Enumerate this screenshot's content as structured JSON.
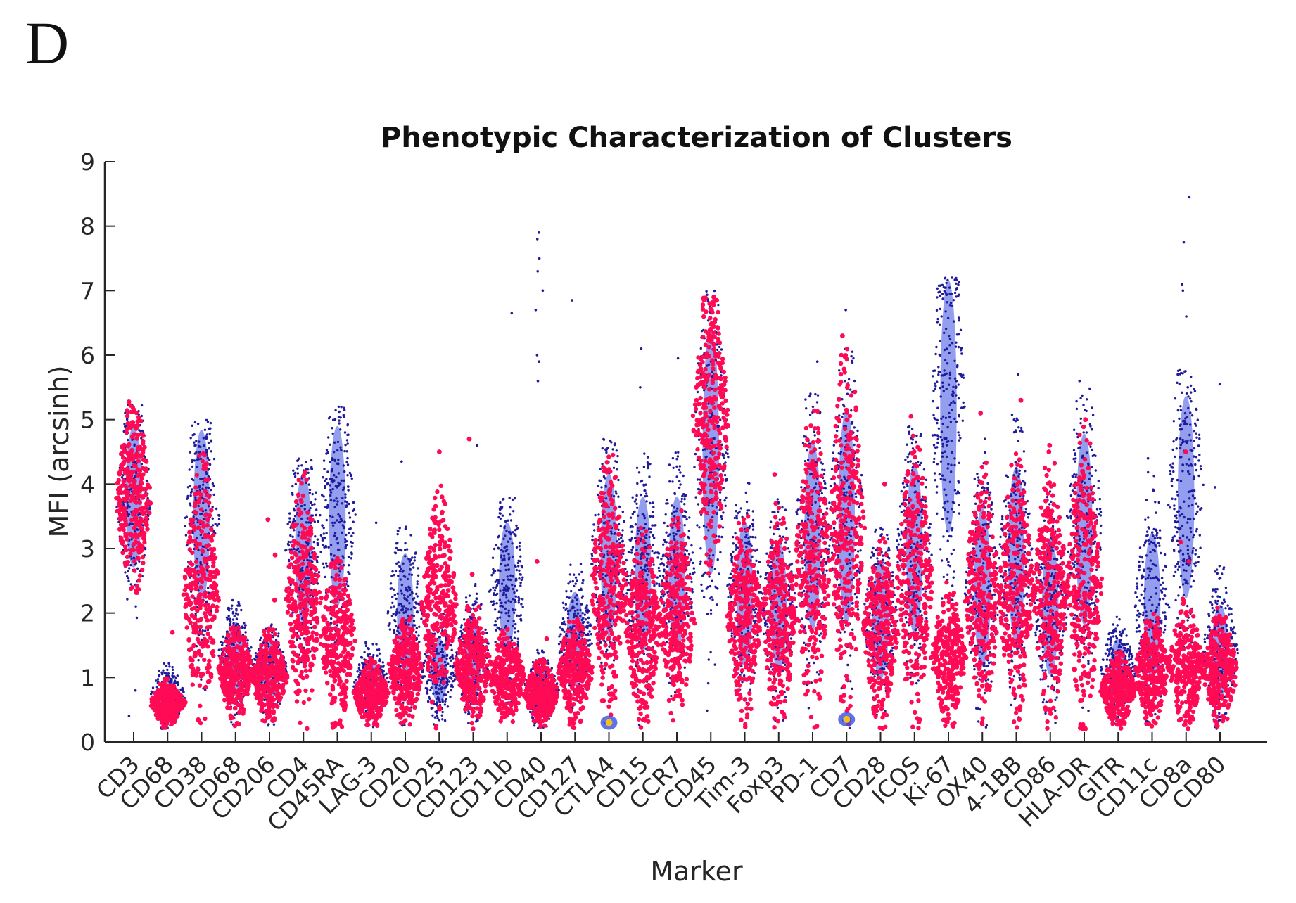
{
  "figure": {
    "panel_label": "D"
  },
  "colors": {
    "background": "#ffffff",
    "axis": "#262626",
    "cluster_a": "#1f1b9a",
    "cluster_a_density": "#3a4fe0",
    "cluster_b": "#ff0a54",
    "hotspot": "#f0c020"
  },
  "chart_data": {
    "type": "scatter",
    "title": "Phenotypic Characterization of Clusters",
    "xlabel": "Marker",
    "ylabel": "MFI (arcsinh)",
    "ylim": [
      0,
      9
    ],
    "yticks": [
      0,
      1,
      2,
      3,
      4,
      5,
      6,
      7,
      8,
      9
    ],
    "grid": false,
    "legend": "none",
    "categories": [
      "CD3",
      "CD68",
      "CD38",
      "CD68",
      "CD206",
      "CD4",
      "CD45RA",
      "LAG-3",
      "CD20",
      "CD25",
      "CD123",
      "CD11b",
      "CD40",
      "CD127",
      "CTLA4",
      "CD15",
      "CCR7",
      "CD45",
      "Tim-3",
      "Foxp3",
      "PD-1",
      "CD7",
      "CD28",
      "ICOS",
      "Ki-67",
      "OX40",
      "4-1BB",
      "CD86",
      "HLA-DR",
      "GITR",
      "CD11c",
      "CD8a",
      "CD80"
    ],
    "series": [
      {
        "color": "#1f1b9a",
        "low": [
          1.5,
          0.2,
          0.2,
          0.2,
          0.2,
          0.2,
          0.2,
          0.2,
          0.2,
          0.2,
          0.2,
          0.2,
          0.2,
          0.2,
          0.2,
          0.2,
          0.2,
          0.2,
          0.2,
          0.2,
          0.2,
          0.2,
          0.2,
          0.2,
          0.2,
          0.2,
          0.2,
          0.2,
          0.2,
          0.2,
          0.2,
          0.2,
          0.2
        ],
        "high": [
          5.4,
          1.3,
          5.0,
          2.2,
          2.0,
          4.4,
          5.2,
          1.6,
          3.5,
          2.0,
          2.5,
          3.8,
          1.5,
          2.8,
          4.7,
          4.5,
          4.5,
          7.0,
          4.2,
          3.8,
          5.4,
          6.1,
          3.5,
          4.9,
          7.2,
          4.6,
          5.1,
          4.0,
          5.5,
          2.0,
          4.3,
          5.8,
          2.8
        ],
        "median": [
          3.8,
          0.7,
          3.5,
          1.3,
          1.1,
          3.0,
          3.5,
          0.9,
          2.0,
          1.1,
          1.3,
          2.4,
          0.8,
          1.6,
          2.9,
          2.6,
          2.6,
          4.5,
          2.3,
          2.1,
          3.2,
          3.5,
          1.9,
          3.0,
          5.2,
          2.4,
          2.9,
          2.1,
          3.3,
          1.1,
          2.1,
          3.8,
          1.4
        ],
        "outliers": [
          [
            12,
            7.9
          ],
          [
            12,
            7.8
          ],
          [
            12,
            7.5
          ],
          [
            12,
            7.3
          ],
          [
            12,
            7.0
          ],
          [
            12,
            6.7
          ],
          [
            12,
            6.0
          ],
          [
            12,
            5.9
          ],
          [
            12,
            5.6
          ],
          [
            11,
            6.65
          ],
          [
            13,
            6.85
          ],
          [
            15,
            6.1
          ],
          [
            15,
            5.5
          ],
          [
            31,
            8.45
          ],
          [
            31,
            7.75
          ],
          [
            31,
            7.1
          ],
          [
            31,
            7.0
          ],
          [
            31,
            6.6
          ],
          [
            20,
            5.9
          ],
          [
            21,
            6.7
          ],
          [
            25,
            4.7
          ],
          [
            26,
            5.7
          ],
          [
            28,
            5.6
          ],
          [
            31,
            5.5
          ],
          [
            32,
            5.55
          ],
          [
            32,
            3.95
          ],
          [
            8,
            4.35
          ],
          [
            10,
            4.6
          ],
          [
            7,
            3.4
          ],
          [
            16,
            5.95
          ],
          [
            30,
            4.4
          ],
          [
            0,
            0.8
          ],
          [
            0,
            0.4
          ]
        ]
      },
      {
        "color": "#ff0a54",
        "low": [
          2.0,
          0.2,
          0.2,
          0.2,
          0.2,
          0.2,
          0.2,
          0.2,
          0.2,
          0.2,
          0.2,
          0.2,
          0.2,
          0.2,
          0.2,
          0.2,
          0.2,
          2.0,
          0.2,
          0.2,
          0.2,
          0.2,
          0.2,
          0.2,
          0.2,
          0.2,
          0.2,
          0.2,
          0.2,
          0.2,
          0.2,
          0.2,
          0.2
        ],
        "high": [
          5.3,
          1.0,
          4.5,
          1.9,
          1.8,
          4.2,
          3.0,
          1.3,
          2.0,
          4.0,
          2.2,
          1.8,
          1.3,
          2.0,
          4.6,
          3.5,
          3.7,
          6.9,
          3.6,
          3.7,
          5.2,
          6.1,
          3.2,
          4.8,
          2.5,
          4.4,
          4.5,
          4.5,
          4.9,
          1.4,
          2.0,
          2.3,
          2.1
        ],
        "median": [
          3.8,
          0.6,
          2.3,
          1.1,
          1.0,
          2.2,
          1.6,
          0.75,
          1.1,
          2.1,
          1.2,
          1.0,
          0.75,
          1.1,
          2.4,
          1.8,
          1.9,
          5.0,
          1.9,
          1.9,
          2.7,
          3.3,
          1.7,
          2.5,
          1.3,
          2.3,
          2.3,
          2.3,
          2.5,
          0.8,
          1.1,
          1.2,
          1.1
        ],
        "outliers": [
          [
            4,
            2.9
          ],
          [
            4,
            3.45
          ],
          [
            4,
            2.2
          ],
          [
            9,
            4.5
          ],
          [
            9,
            3.8
          ],
          [
            10,
            4.7
          ],
          [
            10,
            2.6
          ],
          [
            12,
            2.8
          ],
          [
            12,
            1.6
          ],
          [
            22,
            4.0
          ],
          [
            23,
            5.05
          ],
          [
            25,
            5.1
          ],
          [
            26,
            5.3
          ],
          [
            27,
            4.5
          ],
          [
            27,
            4.6
          ],
          [
            17,
            6.9
          ],
          [
            17,
            6.8
          ],
          [
            21,
            6.3
          ],
          [
            31,
            4.5
          ],
          [
            31,
            3.1
          ],
          [
            31,
            2.8
          ],
          [
            6,
            2.8
          ],
          [
            1,
            1.7
          ],
          [
            2,
            1.35
          ],
          [
            19,
            4.15
          ],
          [
            28,
            5.0
          ]
        ]
      }
    ]
  }
}
